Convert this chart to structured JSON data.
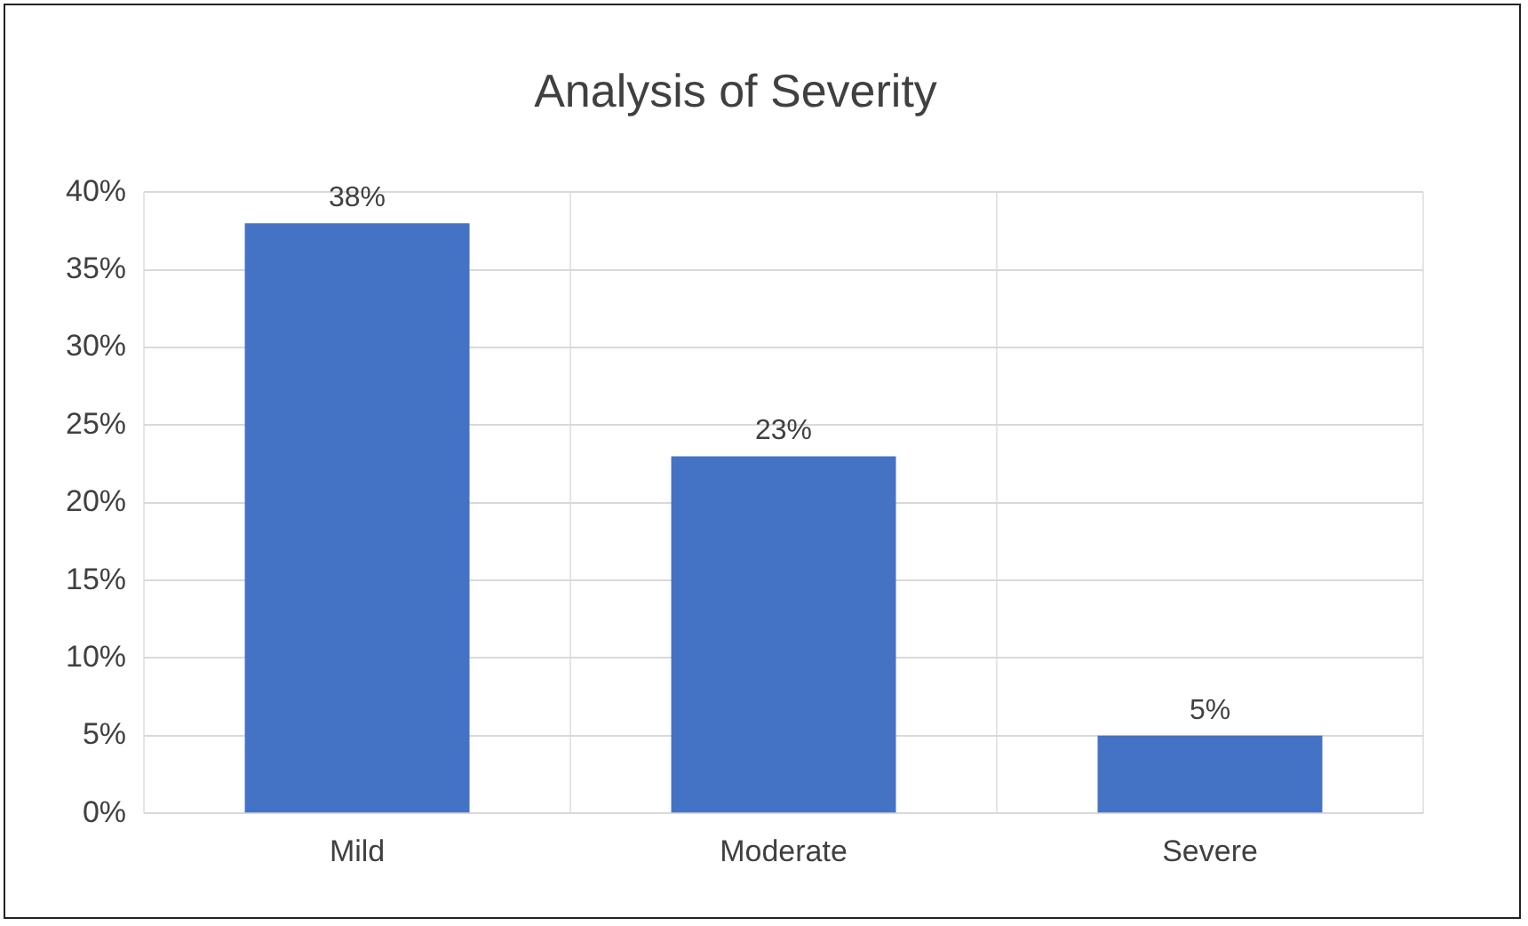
{
  "chart_data": {
    "type": "bar",
    "title": "Analysis of Severity",
    "categories": [
      "Mild",
      "Moderate",
      "Severe"
    ],
    "values": [
      38,
      23,
      5
    ],
    "value_labels": [
      "38%",
      "23%",
      "5%"
    ],
    "color": "#4472c4",
    "ylim": [
      0,
      40
    ],
    "yticks": [
      {
        "value": 0,
        "label": "0%"
      },
      {
        "value": 5,
        "label": "5%"
      },
      {
        "value": 10,
        "label": "10%"
      },
      {
        "value": 15,
        "label": "15%"
      },
      {
        "value": 20,
        "label": "20%"
      },
      {
        "value": 25,
        "label": "25%"
      },
      {
        "value": 30,
        "label": "30%"
      },
      {
        "value": 35,
        "label": "35%"
      },
      {
        "value": 40,
        "label": "40%"
      }
    ],
    "grid": true
  }
}
